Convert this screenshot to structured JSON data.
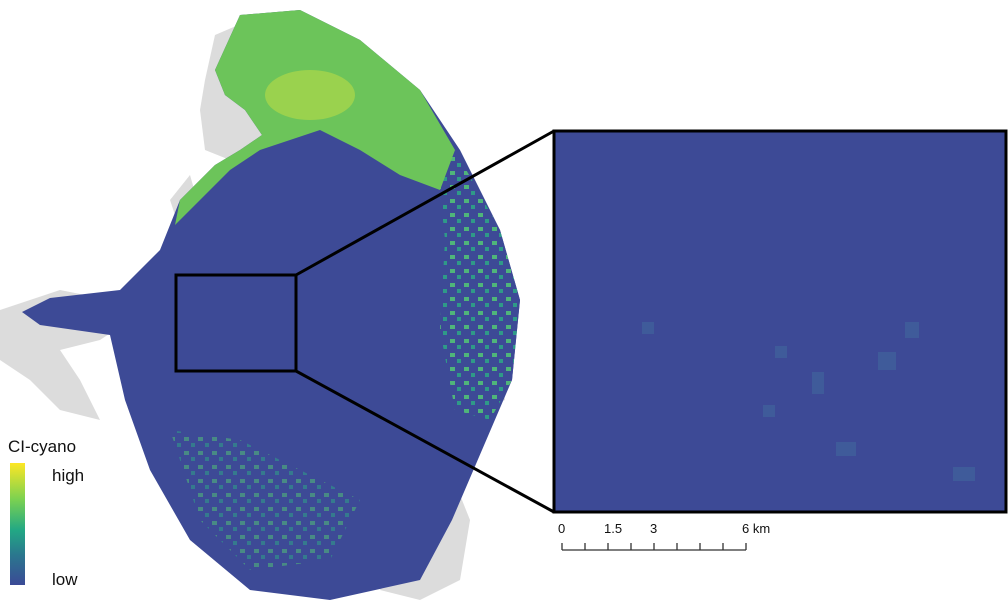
{
  "legend": {
    "title": "CI-cyano",
    "high": "high",
    "low": "low"
  },
  "scale_bar": {
    "labels": [
      "0",
      "1.5",
      "3",
      "6 km"
    ]
  }
}
